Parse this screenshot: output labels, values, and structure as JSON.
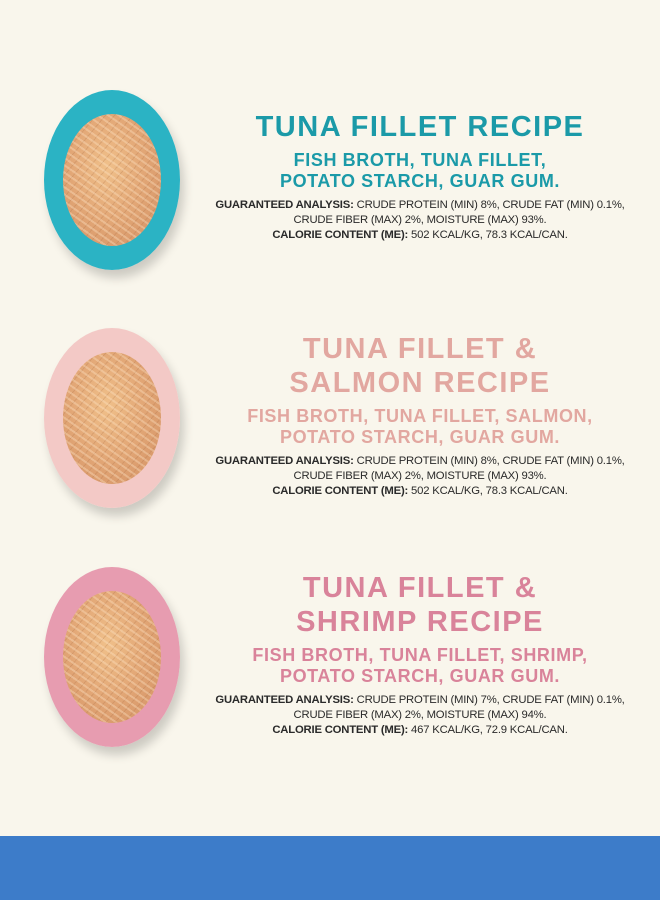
{
  "colors": {
    "background": "#f9f6ec",
    "band": "#3d7cc9",
    "text": "#2a2a2a"
  },
  "recipes": [
    {
      "title_lines": [
        "TUNA FILLET RECIPE"
      ],
      "ingredients_lines": [
        "FISH BROTH, TUNA FILLET,",
        "POTATO STARCH, GUAR GUM."
      ],
      "analysis_label": "GUARANTEED ANALYSIS:",
      "analysis_line1": "CRUDE PROTEIN (MIN) 8%, CRUDE FAT (MIN) 0.1%,",
      "analysis_line2": "CRUDE FIBER (MAX) 2%, MOISTURE (MAX) 93%.",
      "calorie_label": "CALORIE CONTENT (ME):",
      "calorie_value": "502 KCAL/KG, 78.3 KCAL/CAN.",
      "accent": "#1b9aa8",
      "bowl_color": "#2bb3c4"
    },
    {
      "title_lines": [
        "TUNA FILLET &",
        "SALMON RECIPE"
      ],
      "ingredients_lines": [
        "FISH BROTH, TUNA FILLET, SALMON,",
        "POTATO STARCH, GUAR GUM."
      ],
      "analysis_label": "GUARANTEED ANALYSIS:",
      "analysis_line1": "CRUDE PROTEIN (MIN) 8%, CRUDE FAT (MIN) 0.1%,",
      "analysis_line2": "CRUDE FIBER (MAX) 2%, MOISTURE (MAX) 93%.",
      "calorie_label": "CALORIE CONTENT (ME):",
      "calorie_value": "502 KCAL/KG, 78.3 KCAL/CAN.",
      "accent": "#e2a7a0",
      "bowl_color": "#f3c9c6"
    },
    {
      "title_lines": [
        "TUNA FILLET &",
        "SHRIMP RECIPE"
      ],
      "ingredients_lines": [
        "FISH BROTH, TUNA FILLET, SHRIMP,",
        "POTATO STARCH, GUAR GUM."
      ],
      "analysis_label": "GUARANTEED ANALYSIS:",
      "analysis_line1": "CRUDE PROTEIN (MIN) 7%, CRUDE FAT (MIN) 0.1%,",
      "analysis_line2": "CRUDE FIBER (MAX) 2%, MOISTURE (MAX) 94%.",
      "calorie_label": "CALORIE CONTENT (ME):",
      "calorie_value": "467 KCAL/KG, 72.9 KCAL/CAN.",
      "accent": "#d9839a",
      "bowl_color": "#e79cb0"
    }
  ]
}
